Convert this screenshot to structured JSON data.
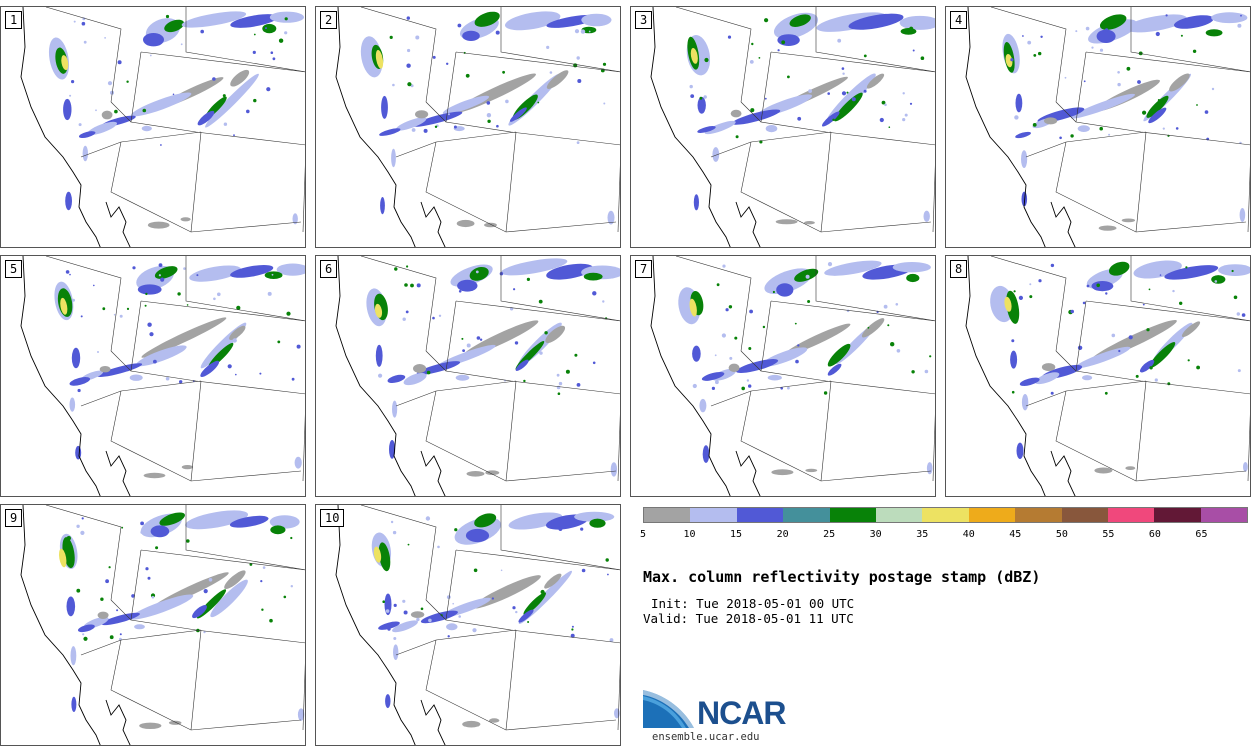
{
  "panels": [
    "1",
    "2",
    "3",
    "4",
    "5",
    "6",
    "7",
    "8",
    "9",
    "10"
  ],
  "colorbar": {
    "colors": [
      "#a3a3a3",
      "#b4bdef",
      "#5159d6",
      "#44909b",
      "#088208",
      "#bcdcbc",
      "#ede262",
      "#eeab1b",
      "#b57b32",
      "#88573c",
      "#f0487c",
      "#621836",
      "#a84ea6"
    ],
    "ticks": [
      "5",
      "10",
      "15",
      "20",
      "25",
      "30",
      "35",
      "40",
      "45",
      "50",
      "55",
      "60",
      "65"
    ]
  },
  "title": "Max. column reflectivity postage stamp (dBZ)",
  "init": "Init: Tue 2018-05-01 00 UTC",
  "valid": "Valid: Tue 2018-05-01 11 UTC",
  "logo": {
    "name": "ncar-logo",
    "text": "NCAR",
    "url": "ensemble.ucar.edu"
  }
}
